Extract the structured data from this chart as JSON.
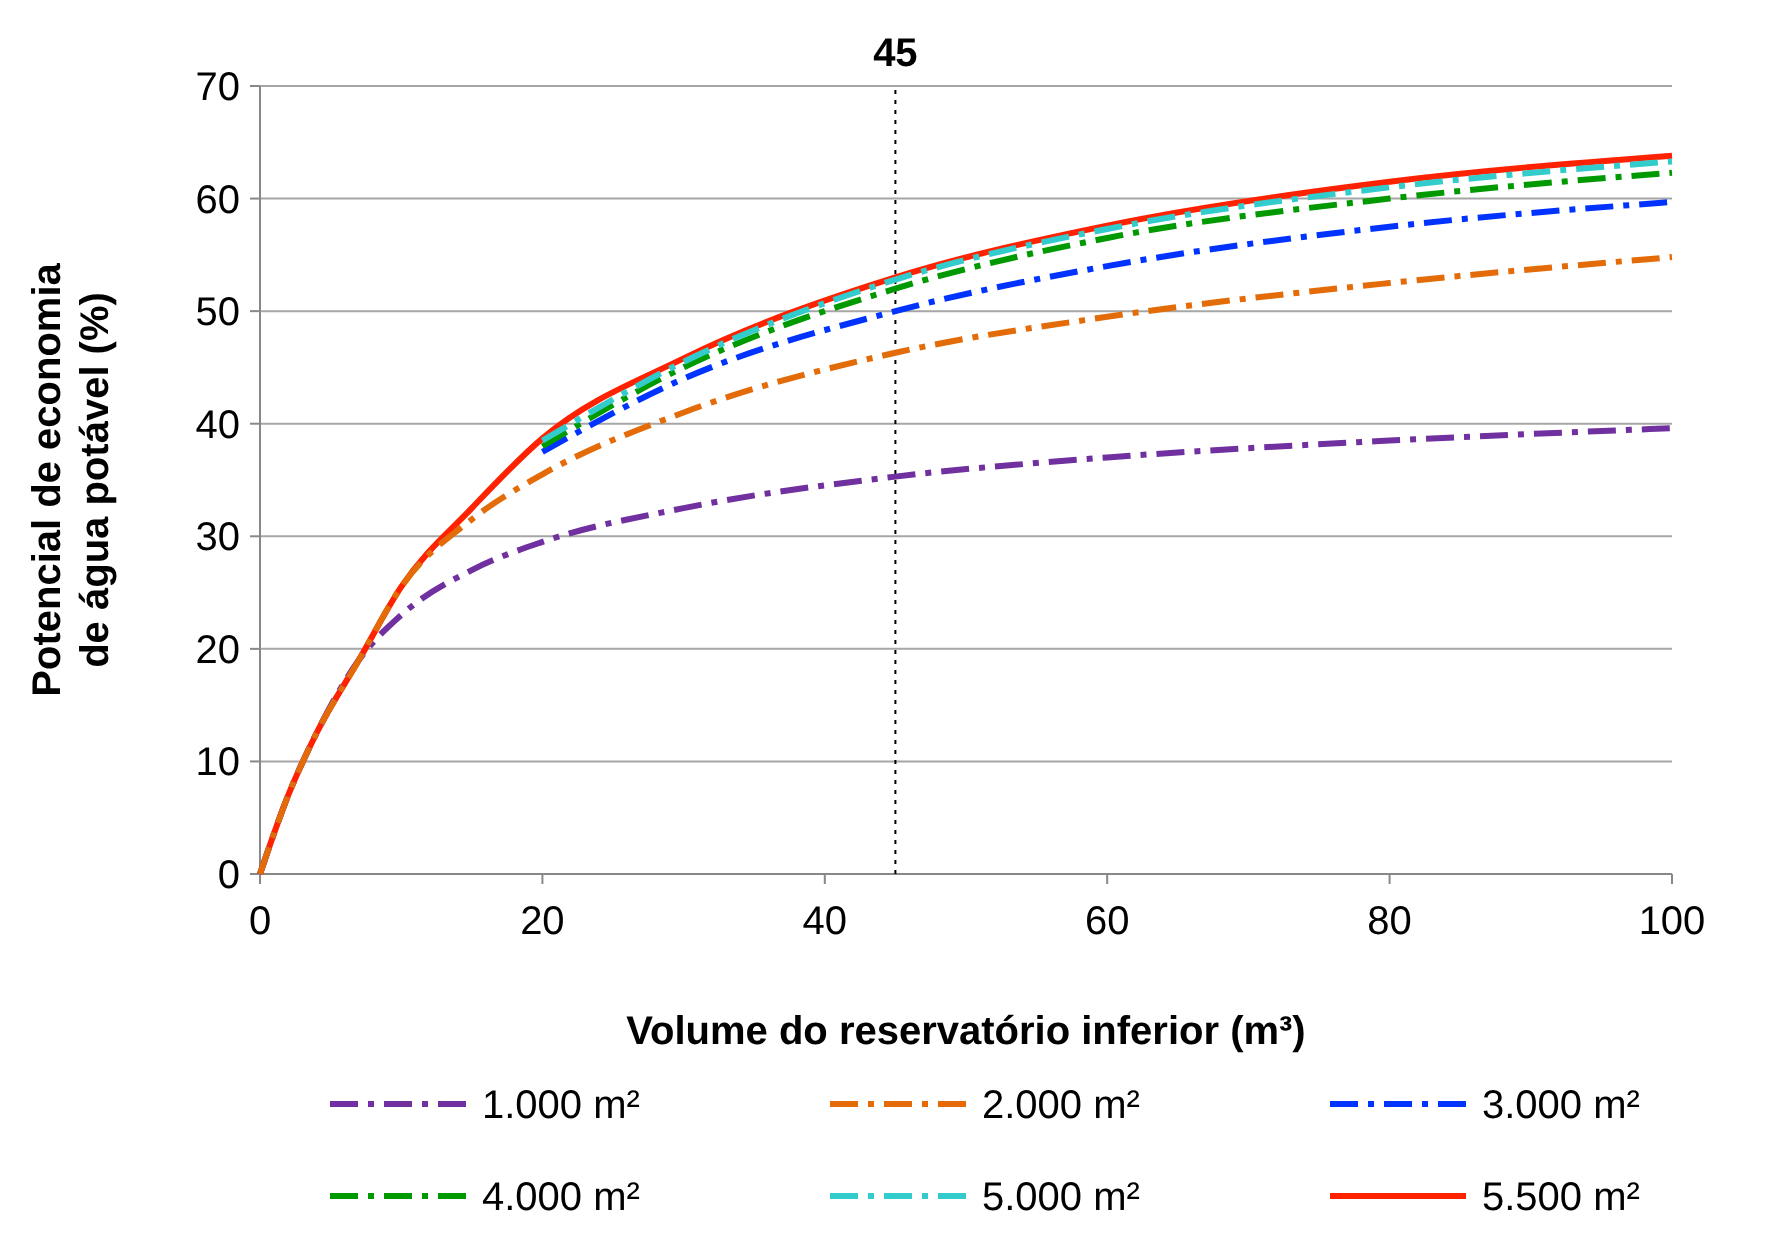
{
  "chart_data": {
    "type": "line",
    "xlabel": "Volume do reservatório inferior (m³)",
    "ylabel": "Potencial de economia de água potável (%)",
    "x": [
      0,
      2,
      4,
      7,
      10,
      15,
      20,
      30,
      45,
      60,
      80,
      100
    ],
    "xlim": [
      0,
      100
    ],
    "xticks": [
      0,
      20,
      40,
      60,
      80,
      100
    ],
    "ylim": [
      0,
      70
    ],
    "yticks": [
      0,
      10,
      20,
      30,
      40,
      50,
      60,
      70
    ],
    "grid": "y",
    "legend": "bottom",
    "marker": "none",
    "ref_lines": [
      {
        "axis": "x",
        "value": 45,
        "label": "45",
        "color": "#000000",
        "line_style": "dotted"
      }
    ],
    "series": [
      {
        "name": "1.000 m²",
        "color": "#7030a0",
        "line_style": "dashdot",
        "values": [
          0,
          7,
          12.5,
          19,
          23,
          27,
          29.5,
          32.5,
          35.3,
          37,
          38.5,
          39.6
        ]
      },
      {
        "name": "2.000 m²",
        "color": "#e36c09",
        "line_style": "dashdot",
        "values": [
          0,
          7,
          12.5,
          19,
          25.5,
          31.5,
          35.5,
          41,
          46.3,
          49.5,
          52.5,
          54.8
        ]
      },
      {
        "name": "3.000 m²",
        "color": "#0033ff",
        "line_style": "dashdot",
        "values": [
          null,
          null,
          null,
          null,
          null,
          null,
          37.5,
          44,
          50,
          54,
          57.5,
          59.7
        ]
      },
      {
        "name": "4.000 m²",
        "color": "#009900",
        "line_style": "dashdot",
        "values": [
          null,
          null,
          null,
          null,
          null,
          null,
          38,
          45,
          52,
          56.5,
          60,
          62.3
        ]
      },
      {
        "name": "5.000 m²",
        "color": "#33cccc",
        "line_style": "dashdot",
        "values": [
          null,
          null,
          null,
          null,
          null,
          null,
          38.5,
          45.5,
          52.8,
          57.3,
          61,
          63.3
        ]
      },
      {
        "name": "5.500 m²",
        "color": "#ff2200",
        "line_style": "solid",
        "values": [
          0,
          7,
          12.5,
          19,
          25.5,
          32.5,
          38.7,
          45.8,
          53,
          57.6,
          61.5,
          63.8
        ]
      }
    ]
  }
}
